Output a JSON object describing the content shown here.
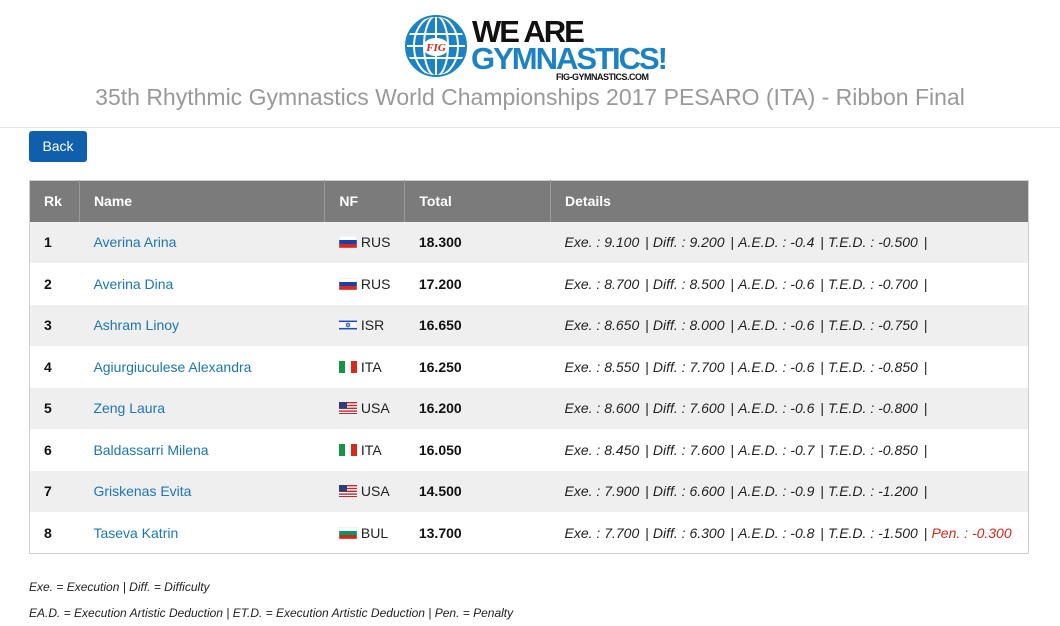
{
  "logo": {
    "badge": "FIG",
    "line1": "WE ARE",
    "line2": "GYMNASTICS!",
    "url": "FIG-GYMNASTICS.COM",
    "colors": {
      "blue": "#1c82c4",
      "red": "#d9251c",
      "dark": "#111111"
    }
  },
  "page_title": "35th Rhythmic Gymnastics World Championships 2017 PESARO (ITA) - Ribbon Final",
  "back_label": "Back",
  "table": {
    "headers": {
      "rk": "Rk",
      "name": "Name",
      "nf": "NF",
      "total": "Total",
      "details": "Details"
    },
    "labels": {
      "exe": "Exe. :",
      "diff": "Diff. :",
      "aed": "A.E.D. :",
      "ted": "T.E.D. :",
      "pen": "Pen. :"
    },
    "rows": [
      {
        "rk": "1",
        "name": "Averina Arina",
        "nf": "RUS",
        "flag": "flag-russia-icon",
        "total": "18.300",
        "exe": "9.100",
        "diff": "9.200",
        "aed": "-0.4",
        "ted": "-0.500",
        "pen": ""
      },
      {
        "rk": "2",
        "name": "Averina Dina",
        "nf": "RUS",
        "flag": "flag-russia-icon",
        "total": "17.200",
        "exe": "8.700",
        "diff": "8.500",
        "aed": "-0.6",
        "ted": "-0.700",
        "pen": ""
      },
      {
        "rk": "3",
        "name": "Ashram Linoy",
        "nf": "ISR",
        "flag": "flag-israel-icon",
        "total": "16.650",
        "exe": "8.650",
        "diff": "8.000",
        "aed": "-0.6",
        "ted": "-0.750",
        "pen": ""
      },
      {
        "rk": "4",
        "name": "Agiurgiuculese Alexandra",
        "nf": "ITA",
        "flag": "flag-italy-icon",
        "total": "16.250",
        "exe": "8.550",
        "diff": "7.700",
        "aed": "-0.6",
        "ted": "-0.850",
        "pen": ""
      },
      {
        "rk": "5",
        "name": "Zeng Laura",
        "nf": "USA",
        "flag": "flag-usa-icon",
        "total": "16.200",
        "exe": "8.600",
        "diff": "7.600",
        "aed": "-0.6",
        "ted": "-0.800",
        "pen": ""
      },
      {
        "rk": "6",
        "name": "Baldassarri Milena",
        "nf": "ITA",
        "flag": "flag-italy-icon",
        "total": "16.050",
        "exe": "8.450",
        "diff": "7.600",
        "aed": "-0.7",
        "ted": "-0.850",
        "pen": ""
      },
      {
        "rk": "7",
        "name": "Griskenas Evita",
        "nf": "USA",
        "flag": "flag-usa-icon",
        "total": "14.500",
        "exe": "7.900",
        "diff": "6.600",
        "aed": "-0.9",
        "ted": "-1.200",
        "pen": ""
      },
      {
        "rk": "8",
        "name": "Taseva Katrin",
        "nf": "BUL",
        "flag": "flag-bulgaria-icon",
        "total": "13.700",
        "exe": "7.700",
        "diff": "6.300",
        "aed": "-0.8",
        "ted": "-1.500",
        "pen": "-0.300"
      }
    ]
  },
  "legend": {
    "line1": "Exe. = Execution | Diff. = Difficulty",
    "line2": "EA.D. = Execution Artistic Deduction | ET.D. = Execution Artistic Deduction | Pen. = Penalty"
  }
}
